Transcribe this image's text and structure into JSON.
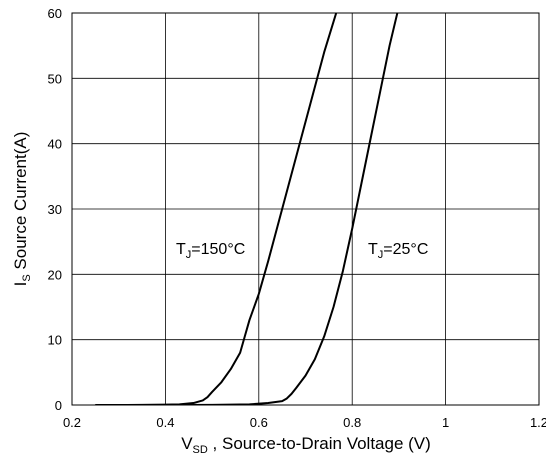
{
  "chart_data": {
    "type": "line",
    "xlabel": {
      "main": "V",
      "sub": "SD",
      "rest": " ,  Source-to-Drain Voltage (V)"
    },
    "ylabel": {
      "main": "I",
      "sub": "S",
      "rest": " Source Current(A)"
    },
    "xlim": [
      0.2,
      1.2
    ],
    "ylim": [
      0,
      60
    ],
    "xticks": [
      "0.2",
      "0.4",
      "0.6",
      "0.8",
      "1",
      "1.2"
    ],
    "yticks": [
      "0",
      "10",
      "20",
      "30",
      "40",
      "50",
      "60"
    ],
    "grid": true,
    "series": [
      {
        "name": "TJ=150°C",
        "label": {
          "main": "T",
          "sub": "J",
          "rest": "=150°C"
        },
        "x": [
          0.25,
          0.3,
          0.35,
          0.4,
          0.43,
          0.46,
          0.48,
          0.49,
          0.5,
          0.52,
          0.54,
          0.56,
          0.57,
          0.58,
          0.6,
          0.62,
          0.65,
          0.68,
          0.71,
          0.74,
          0.77
        ],
        "y": [
          0,
          0,
          0.02,
          0.05,
          0.1,
          0.3,
          0.7,
          1.2,
          2.0,
          3.5,
          5.5,
          8.0,
          10.5,
          13.0,
          17.0,
          22.0,
          30.0,
          38.0,
          46.0,
          54.0,
          61.0
        ]
      },
      {
        "name": "TJ=25°C",
        "label": {
          "main": "T",
          "sub": "J",
          "rest": "=25°C"
        },
        "x": [
          0.25,
          0.4,
          0.5,
          0.58,
          0.62,
          0.65,
          0.66,
          0.67,
          0.68,
          0.7,
          0.72,
          0.74,
          0.76,
          0.78,
          0.8,
          0.82,
          0.84,
          0.86,
          0.88,
          0.9
        ],
        "y": [
          0,
          0,
          0.02,
          0.1,
          0.3,
          0.6,
          1.0,
          1.7,
          2.6,
          4.5,
          7.0,
          10.5,
          15.0,
          20.5,
          27.0,
          34.0,
          41.0,
          48.0,
          55.0,
          61.0
        ]
      }
    ]
  }
}
